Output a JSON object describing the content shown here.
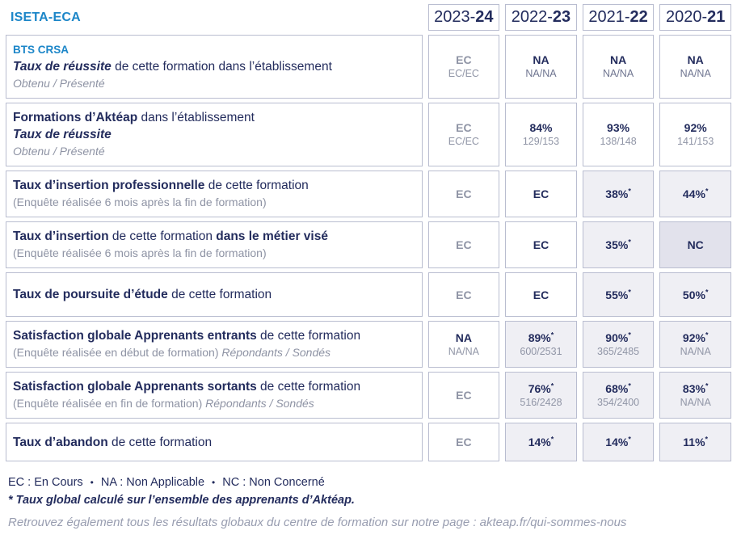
{
  "header": {
    "title": "ISETA-ECA",
    "years": [
      {
        "light": "2023-",
        "bold": "24"
      },
      {
        "light": "2022-",
        "bold": "23"
      },
      {
        "light": "2021-",
        "bold": "22"
      },
      {
        "light": "2020-",
        "bold": "21"
      }
    ]
  },
  "colors": {
    "brand_blue": "#1c86c8",
    "navy": "#232c5d",
    "gray_text": "#8e93a4",
    "border": "#b9bdd0",
    "shaded_cell": "#efeff4",
    "shaded_dark_cell": "#e2e2ec"
  },
  "table": {
    "rows": [
      {
        "label_lines": [
          [
            {
              "t": "BTS CRSA",
              "s": "blue"
            }
          ],
          [
            {
              "t": "Taux de réussite",
              "s": "bi"
            },
            {
              "t": " de cette formation dans l’établissement",
              "s": "n"
            }
          ],
          [
            {
              "t": "Obtenu / Présenté",
              "s": "gi"
            }
          ]
        ],
        "cells": [
          {
            "main": "EC",
            "sub": "EC/EC",
            "main_gray": true
          },
          {
            "main": "NA",
            "sub": "NA/NA",
            "sub_dark": true
          },
          {
            "main": "NA",
            "sub": "NA/NA",
            "sub_dark": true
          },
          {
            "main": "NA",
            "sub": "NA/NA",
            "sub_dark": true
          }
        ]
      },
      {
        "label_lines": [
          [
            {
              "t": "Formations d’Aktéap",
              "s": "b"
            },
            {
              "t": " dans l’établissement",
              "s": "n"
            }
          ],
          [
            {
              "t": "Taux de réussite",
              "s": "bi"
            }
          ],
          [
            {
              "t": "Obtenu / Présenté",
              "s": "gi"
            }
          ]
        ],
        "cells": [
          {
            "main": "EC",
            "sub": "EC/EC",
            "main_gray": true
          },
          {
            "main": "84%",
            "sub": "129/153"
          },
          {
            "main": "93%",
            "sub": "138/148"
          },
          {
            "main": "92%",
            "sub": "141/153"
          }
        ]
      },
      {
        "label_lines": [
          [
            {
              "t": "Taux d’insertion professionnelle",
              "s": "b"
            },
            {
              "t": " de cette formation",
              "s": "n"
            }
          ],
          [
            {
              "t": "(Enquête réalisée 6 mois après la fin de formation)",
              "s": "g"
            }
          ]
        ],
        "cells": [
          {
            "main": "EC",
            "main_gray": true
          },
          {
            "main": "EC"
          },
          {
            "main": "38%",
            "star": true,
            "shaded": true
          },
          {
            "main": "44%",
            "star": true,
            "shaded": true
          }
        ]
      },
      {
        "label_lines": [
          [
            {
              "t": "Taux d’insertion",
              "s": "b"
            },
            {
              "t": " de cette formation ",
              "s": "n"
            },
            {
              "t": "dans le métier visé",
              "s": "b"
            }
          ],
          [
            {
              "t": "(Enquête réalisée 6 mois après la fin de formation)",
              "s": "g"
            }
          ]
        ],
        "cells": [
          {
            "main": "EC",
            "main_gray": true
          },
          {
            "main": "EC"
          },
          {
            "main": "35%",
            "star": true,
            "shaded": true
          },
          {
            "main": "NC",
            "shaded_dark": true
          }
        ]
      },
      {
        "label_lines": [
          [
            {
              "t": "Taux de poursuite d’étude",
              "s": "b"
            },
            {
              "t": " de cette formation",
              "s": "n"
            }
          ]
        ],
        "cells": [
          {
            "main": "EC",
            "main_gray": true
          },
          {
            "main": "EC"
          },
          {
            "main": "55%",
            "star": true,
            "shaded": true
          },
          {
            "main": "50%",
            "star": true,
            "shaded": true
          }
        ]
      },
      {
        "label_lines": [
          [
            {
              "t": "Satisfaction globale Apprenants entrants",
              "s": "b"
            },
            {
              "t": " de cette formation",
              "s": "n"
            }
          ],
          [
            {
              "t": "(Enquête réalisée en début de formation) ",
              "s": "g"
            },
            {
              "t": "Répondants / Sondés",
              "s": "gi"
            }
          ]
        ],
        "cells": [
          {
            "main": "NA",
            "sub": "NA/NA"
          },
          {
            "main": "89%",
            "star": true,
            "sub": "600/2531",
            "shaded": true
          },
          {
            "main": "90%",
            "star": true,
            "sub": "365/2485",
            "shaded": true
          },
          {
            "main": "92%",
            "star": true,
            "sub": "NA/NA",
            "shaded": true
          }
        ]
      },
      {
        "label_lines": [
          [
            {
              "t": "Satisfaction globale Apprenants sortants",
              "s": "b"
            },
            {
              "t": " de cette formation",
              "s": "n"
            }
          ],
          [
            {
              "t": "(Enquête réalisée en fin de formation) ",
              "s": "g"
            },
            {
              "t": "Répondants / Sondés",
              "s": "gi"
            }
          ]
        ],
        "cells": [
          {
            "main": "EC",
            "main_gray": true
          },
          {
            "main": "76%",
            "star": true,
            "sub": "516/2428",
            "shaded": true
          },
          {
            "main": "68%",
            "star": true,
            "sub": "354/2400",
            "shaded": true
          },
          {
            "main": "83%",
            "star": true,
            "sub": "NA/NA",
            "shaded": true
          }
        ]
      },
      {
        "label_lines": [
          [
            {
              "t": "Taux d’abandon",
              "s": "b"
            },
            {
              "t": " de cette formation",
              "s": "n"
            }
          ]
        ],
        "cells": [
          {
            "main": "EC",
            "main_gray": true
          },
          {
            "main": "14%",
            "star": true,
            "shaded": true
          },
          {
            "main": "14%",
            "star": true,
            "shaded": true
          },
          {
            "main": "11%",
            "star": true,
            "shaded": true
          }
        ]
      }
    ]
  },
  "footer": {
    "legend_items": [
      "EC : En Cours",
      "NA : Non Applicable",
      "NC : Non Concerné"
    ],
    "bullet": "•",
    "note_star": "* Taux global calculé sur l’ensemble des apprenants d’Aktéap.",
    "note_link": "Retrouvez également tous les résultats globaux du centre de formation sur notre page : akteap.fr/qui-sommes-nous"
  }
}
